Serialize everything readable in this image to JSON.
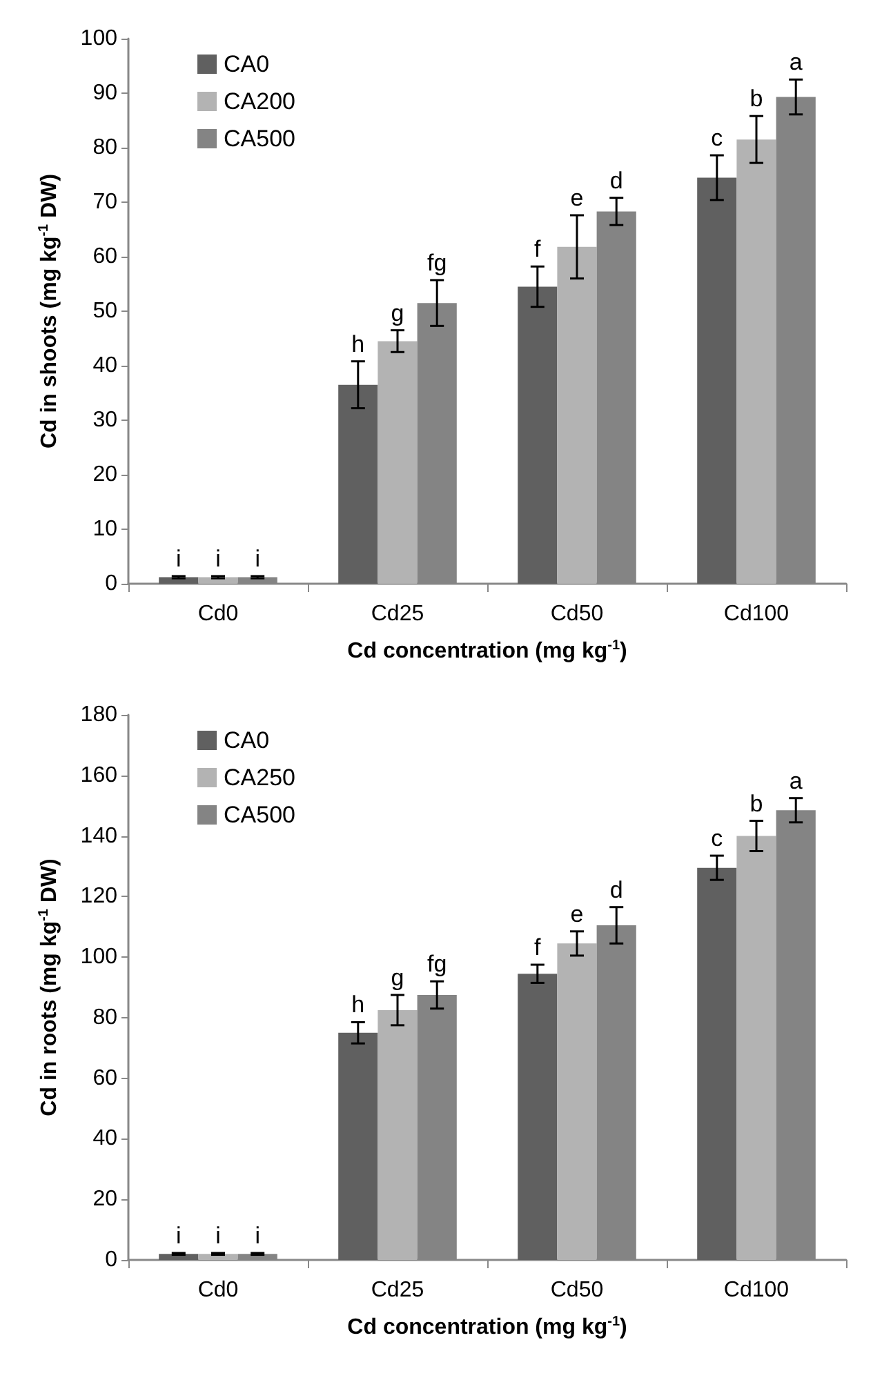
{
  "chart_data": [
    {
      "type": "bar",
      "categories": [
        "Cd0",
        "Cd25",
        "Cd50",
        "Cd100"
      ],
      "xlabel": "Cd concentration (mg kg$^{-1}$)",
      "ylabel": "Cd in shoots (mg kg$^{-1}$ DW)",
      "ylim": [
        0,
        100
      ],
      "yticks": [
        0,
        10,
        20,
        30,
        40,
        50,
        60,
        70,
        80,
        90,
        100
      ],
      "grid": false,
      "legend": "top left",
      "series": [
        {
          "name": "CA0",
          "color": "#606060",
          "values": [
            1.2,
            36.5,
            54.5,
            74.5
          ],
          "errors": [
            0.2,
            4.3,
            3.7,
            4.1
          ],
          "value_labels": [
            "i",
            "h",
            "f",
            "c"
          ]
        },
        {
          "name": "CA200",
          "color": "#b3b3b3",
          "values": [
            1.2,
            44.5,
            61.8,
            81.5
          ],
          "errors": [
            0.2,
            2,
            5.8,
            4.3
          ],
          "value_labels": [
            "i",
            "g",
            "e",
            "b"
          ]
        },
        {
          "name": "CA500",
          "color": "#848484",
          "values": [
            1.2,
            51.5,
            68.3,
            89.3
          ],
          "errors": [
            0.2,
            4.2,
            2.5,
            3.2
          ],
          "value_labels": [
            "i",
            "fg",
            "d",
            "a"
          ]
        }
      ]
    },
    {
      "type": "bar",
      "categories": [
        "Cd0",
        "Cd25",
        "Cd50",
        "Cd100"
      ],
      "xlabel": "Cd concentration (mg kg$^{-1}$)",
      "ylabel": "Cd in roots (mg kg$^{-1}$ DW)",
      "ylim": [
        0,
        180
      ],
      "yticks": [
        0,
        20,
        40,
        60,
        80,
        100,
        120,
        140,
        160,
        180
      ],
      "grid": false,
      "legend": "top left",
      "series": [
        {
          "name": "CA0",
          "color": "#606060",
          "values": [
            2,
            75,
            94.5,
            129.5
          ],
          "errors": [
            0.3,
            3.5,
            3,
            4
          ],
          "value_labels": [
            "i",
            "h",
            "f",
            "c"
          ]
        },
        {
          "name": "CA250",
          "color": "#b3b3b3",
          "values": [
            2,
            82.5,
            104.5,
            140
          ],
          "errors": [
            0.3,
            5,
            4,
            5
          ],
          "value_labels": [
            "i",
            "g",
            "e",
            "b"
          ]
        },
        {
          "name": "CA500",
          "color": "#848484",
          "values": [
            2,
            87.5,
            110.5,
            148.5
          ],
          "errors": [
            0.3,
            4.5,
            6,
            4
          ],
          "value_labels": [
            "i",
            "fg",
            "d",
            "a"
          ]
        }
      ]
    }
  ]
}
